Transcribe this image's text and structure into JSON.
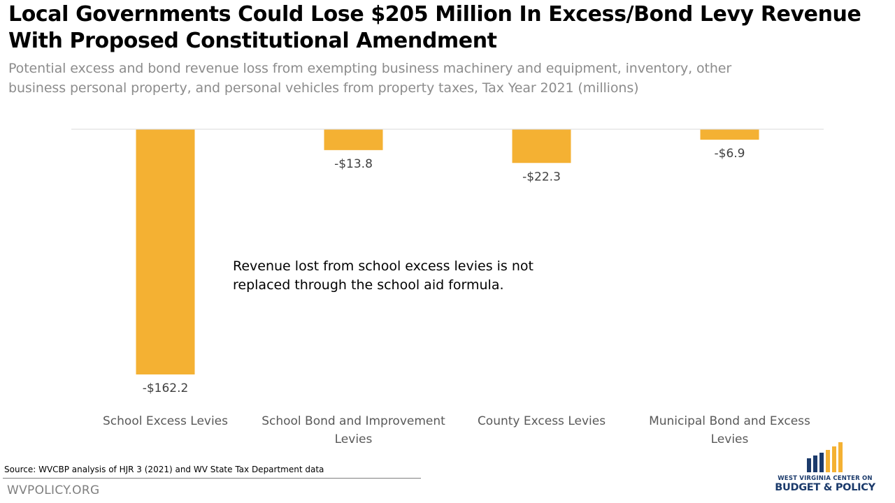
{
  "header": {
    "title": "Local Governments Could Lose $205 Million In Excess/Bond Levy Revenue With Proposed Constitutional Amendment",
    "subtitle": "Potential excess and bond revenue loss from exempting business machinery and equipment, inventory, other business personal property, and personal vehicles from property taxes, Tax Year 2021 (millions)"
  },
  "chart_data": {
    "type": "bar",
    "title": "Local Governments Could Lose $205 Million In Excess/Bond Levy Revenue With Proposed Constitutional Amendment",
    "subtitle": "Potential excess and bond revenue loss from exempting business machinery and equipment, inventory, other business personal property, and personal vehicles from property taxes, Tax Year 2021 (millions)",
    "categories": [
      [
        "School Excess Levies"
      ],
      [
        "School Bond and Improvement",
        "Levies"
      ],
      [
        "County Excess Levies"
      ],
      [
        "Municipal Bond and Excess",
        "Levies"
      ]
    ],
    "values": [
      -162.2,
      -13.8,
      -22.3,
      -6.9
    ],
    "data_labels": [
      "-$162.2",
      "-$13.8",
      "-$22.3",
      "-$6.9"
    ],
    "ylim": [
      -162.2,
      0
    ],
    "xlabel": "",
    "ylabel": "",
    "grid": false,
    "legend": "none",
    "bar_color": "#f4b133",
    "axis_color": "#d9d9d9",
    "annotation": "Revenue lost from school excess levies is not replaced through the school aid formula."
  },
  "annotation": "Revenue lost from school excess levies is not replaced through the school aid formula.",
  "footer": {
    "source": "Source: WVCBP analysis of HJR 3 (2021) and WV State Tax Department data",
    "site": "WVPOLICY.ORG",
    "logo_line1": "WEST VIRGINIA CENTER ON",
    "logo_line2": "BUDGET & POLICY"
  },
  "colors": {
    "bar": "#f4b133",
    "title": "#000000",
    "subtitle": "#8c8c8c",
    "logo_navy": "#1b3a6b",
    "logo_gold": "#f4b133"
  }
}
